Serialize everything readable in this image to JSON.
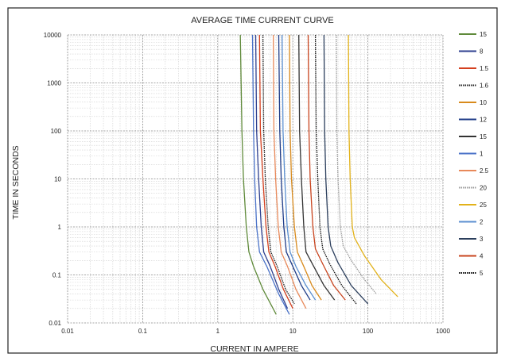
{
  "chart_data": {
    "type": "line",
    "title": "AVERAGE TIME CURRENT CURVE",
    "xlabel": "CURRENT IN AMPERE",
    "ylabel": "TIME IN SECONDS",
    "x_scale": "log",
    "y_scale": "log",
    "xlim": [
      0.01,
      1000
    ],
    "ylim": [
      0.01,
      10000
    ],
    "x_ticks": [
      "0.01",
      "0.1",
      "1",
      "10",
      "100",
      "1000"
    ],
    "y_ticks": [
      "0.01",
      "0.1",
      "1",
      "10",
      "100",
      "1000",
      "10000"
    ],
    "grid": true,
    "legend_position": "right",
    "series": [
      {
        "name": "15",
        "color": "#5f8a3a",
        "style": "solid",
        "points": [
          [
            2.0,
            10000
          ],
          [
            2.1,
            100
          ],
          [
            2.2,
            10
          ],
          [
            2.4,
            1
          ],
          [
            2.6,
            0.3
          ],
          [
            3,
            0.15
          ],
          [
            4,
            0.05
          ],
          [
            6,
            0.015
          ]
        ]
      },
      {
        "name": "8",
        "color": "#2d3f8f",
        "style": "solid",
        "points": [
          [
            3.2,
            10000
          ],
          [
            3.3,
            100
          ],
          [
            3.5,
            10
          ],
          [
            3.8,
            1
          ],
          [
            4.1,
            0.3
          ],
          [
            5,
            0.15
          ],
          [
            6.5,
            0.05
          ],
          [
            8.5,
            0.02
          ]
        ]
      },
      {
        "name": "1.5",
        "color": "#d4401f",
        "style": "solid",
        "points": [
          [
            3.6,
            10000
          ],
          [
            3.7,
            100
          ],
          [
            4,
            10
          ],
          [
            4.4,
            1
          ],
          [
            4.8,
            0.3
          ],
          [
            5.8,
            0.15
          ],
          [
            7.5,
            0.05
          ],
          [
            10,
            0.02
          ]
        ]
      },
      {
        "name": "1.6",
        "color": "#222222",
        "style": "dotted",
        "points": [
          [
            4.0,
            10000
          ],
          [
            4.1,
            100
          ],
          [
            4.3,
            10
          ],
          [
            4.7,
            1
          ],
          [
            5.1,
            0.3
          ],
          [
            6.2,
            0.15
          ],
          [
            8,
            0.05
          ],
          [
            10.5,
            0.025
          ]
        ]
      },
      {
        "name": "10",
        "color": "#d88a1c",
        "style": "solid",
        "points": [
          [
            9.0,
            10000
          ],
          [
            9.2,
            100
          ],
          [
            9.6,
            10
          ],
          [
            10.5,
            1
          ],
          [
            11.5,
            0.3
          ],
          [
            14,
            0.15
          ],
          [
            18,
            0.06
          ],
          [
            24,
            0.03
          ]
        ]
      },
      {
        "name": "12",
        "color": "#1f3c88",
        "style": "solid",
        "points": [
          [
            6.5,
            10000
          ],
          [
            6.7,
            100
          ],
          [
            7,
            10
          ],
          [
            7.6,
            1
          ],
          [
            8.2,
            0.3
          ],
          [
            10,
            0.15
          ],
          [
            13,
            0.06
          ],
          [
            17,
            0.03
          ]
        ]
      },
      {
        "name": "15",
        "color": "#333333",
        "style": "solid",
        "points": [
          [
            12,
            10000
          ],
          [
            12.3,
            100
          ],
          [
            13,
            10
          ],
          [
            14,
            1
          ],
          [
            15,
            0.3
          ],
          [
            19,
            0.15
          ],
          [
            26,
            0.06
          ],
          [
            36,
            0.03
          ]
        ]
      },
      {
        "name": "1",
        "color": "#4b73c8",
        "style": "solid",
        "points": [
          [
            2.9,
            10000
          ],
          [
            3.0,
            100
          ],
          [
            3.1,
            10
          ],
          [
            3.3,
            1
          ],
          [
            3.6,
            0.3
          ],
          [
            4.5,
            0.15
          ],
          [
            6.5,
            0.04
          ],
          [
            9,
            0.015
          ]
        ]
      },
      {
        "name": "2.5",
        "color": "#e8895a",
        "style": "solid",
        "points": [
          [
            5.5,
            10000
          ],
          [
            5.6,
            100
          ],
          [
            5.9,
            10
          ],
          [
            6.4,
            1
          ],
          [
            7,
            0.3
          ],
          [
            8.5,
            0.15
          ],
          [
            11,
            0.05
          ],
          [
            15,
            0.02
          ]
        ]
      },
      {
        "name": "20",
        "color": "#9a9a9a",
        "style": "dotted",
        "points": [
          [
            38,
            10000
          ],
          [
            38.5,
            100
          ],
          [
            40,
            10
          ],
          [
            43,
            1
          ],
          [
            47,
            0.4
          ],
          [
            60,
            0.2
          ],
          [
            90,
            0.08
          ],
          [
            130,
            0.04
          ]
        ]
      },
      {
        "name": "25",
        "color": "#e2b21a",
        "style": "solid",
        "points": [
          [
            55,
            10000
          ],
          [
            56,
            100
          ],
          [
            58,
            10
          ],
          [
            62,
            1
          ],
          [
            66,
            0.6
          ],
          [
            90,
            0.25
          ],
          [
            150,
            0.08
          ],
          [
            250,
            0.035
          ]
        ]
      },
      {
        "name": "2",
        "color": "#5b8fd0",
        "style": "solid",
        "points": [
          [
            7.2,
            10000
          ],
          [
            7.4,
            100
          ],
          [
            7.8,
            10
          ],
          [
            8.4,
            1
          ],
          [
            9.2,
            0.3
          ],
          [
            11,
            0.15
          ],
          [
            15,
            0.06
          ],
          [
            20,
            0.03
          ]
        ]
      },
      {
        "name": "3",
        "color": "#2b3e5c",
        "style": "solid",
        "points": [
          [
            26,
            10000
          ],
          [
            26.5,
            100
          ],
          [
            27.5,
            10
          ],
          [
            29.5,
            1
          ],
          [
            32,
            0.4
          ],
          [
            40,
            0.18
          ],
          [
            60,
            0.06
          ],
          [
            100,
            0.025
          ]
        ]
      },
      {
        "name": "4",
        "color": "#c8441e",
        "style": "solid",
        "points": [
          [
            16,
            10000
          ],
          [
            16.4,
            100
          ],
          [
            17,
            10
          ],
          [
            18.5,
            1
          ],
          [
            20,
            0.35
          ],
          [
            25,
            0.17
          ],
          [
            35,
            0.06
          ],
          [
            50,
            0.03
          ]
        ]
      },
      {
        "name": "5",
        "color": "#111111",
        "style": "dotted",
        "points": [
          [
            20,
            10000
          ],
          [
            20.5,
            100
          ],
          [
            21.5,
            10
          ],
          [
            23,
            1
          ],
          [
            25,
            0.35
          ],
          [
            31,
            0.17
          ],
          [
            45,
            0.06
          ],
          [
            70,
            0.025
          ]
        ]
      }
    ]
  }
}
